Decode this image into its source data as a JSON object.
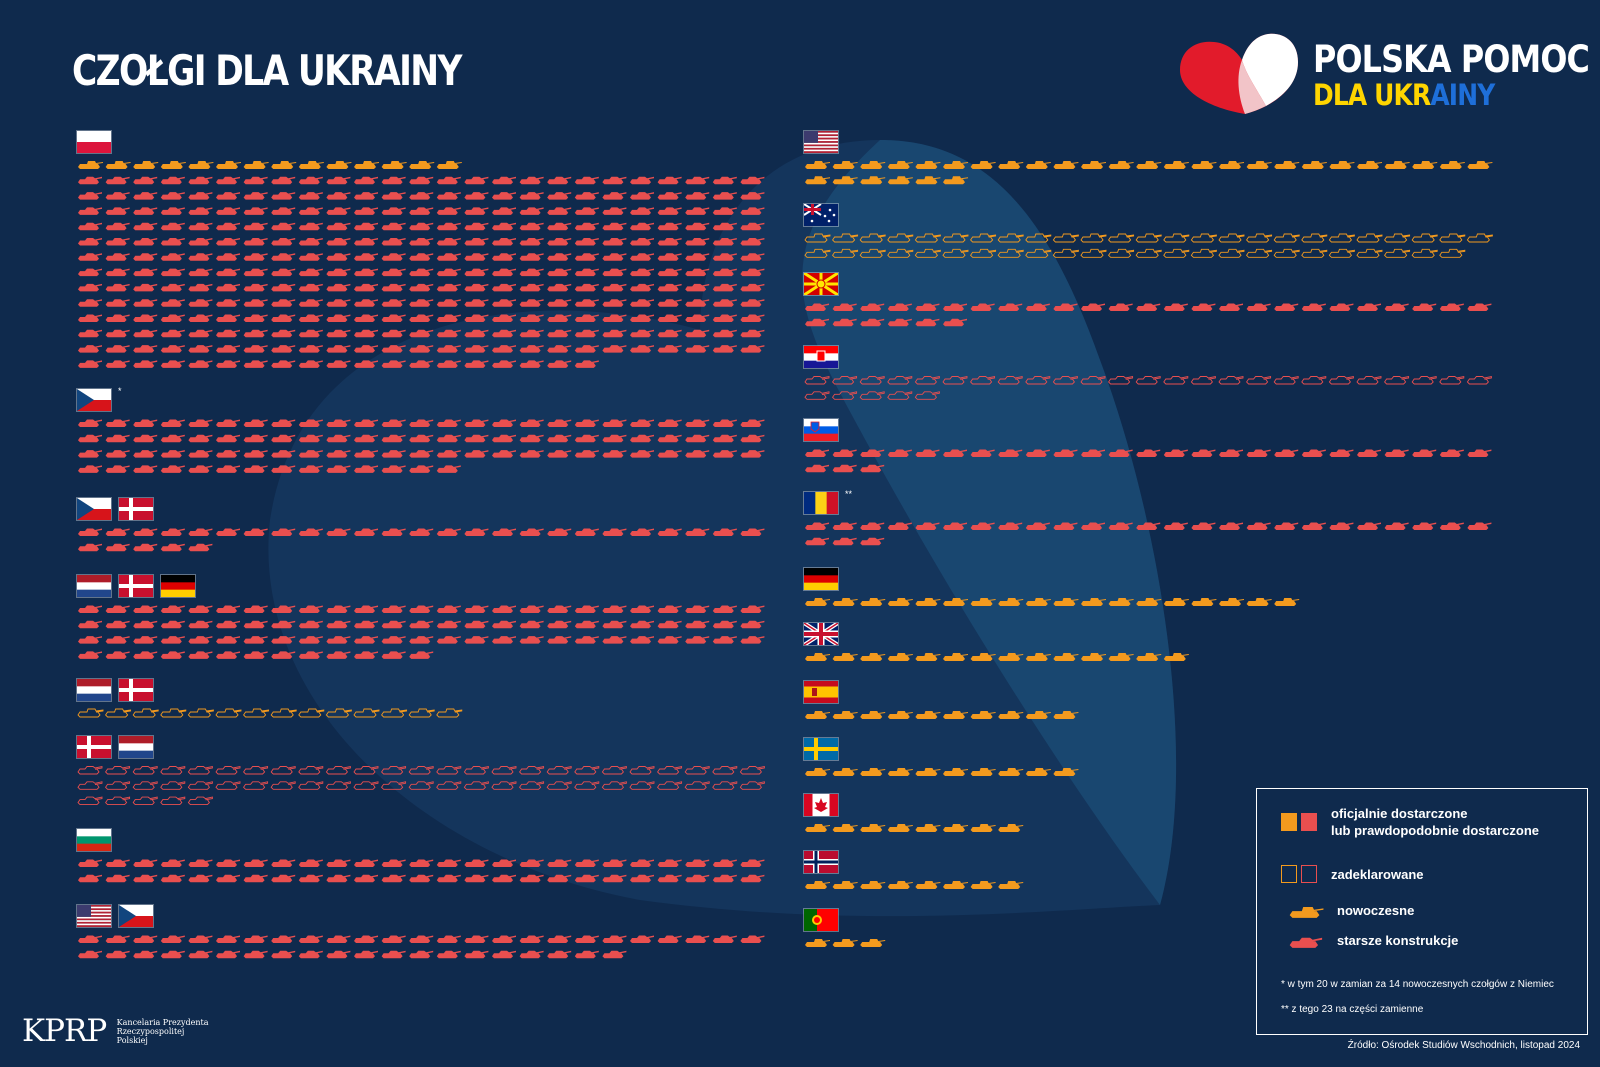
{
  "title": "CZOŁGI DLA UKRAINY",
  "brand": {
    "line1": "POLSKA POMOC",
    "line2_a": "DLA UKR",
    "line2_b": "AINY"
  },
  "colors": {
    "background": "#0f2a4d",
    "modern": "#f39a1e",
    "older": "#e94f4f",
    "heart_shape": "#153a63",
    "heart_red": "#e21b2b"
  },
  "legend": {
    "delivered": "oficjalnie dostarczone\nlub prawdopodobnie dostarczone",
    "declared": "zadeklarowane",
    "modern": "nowoczesne",
    "older": "starsze konstrukcje",
    "note1": "*   w tym 20 w zamian za 14 nowoczesnych czołgów z Niemiec",
    "note2": "** z tego 23 na części zamienne"
  },
  "source": "Źródło: Ośrodek Studiów Wschodnich, listopad 2024",
  "footer": {
    "logo": "KPRP",
    "org_line1": "Kancelaria Prezydenta",
    "org_line2": "Rzeczypospolitej",
    "org_line3": "Polskiej"
  },
  "chart_data": {
    "type": "pictogram",
    "unit": "one icon = one tank",
    "groups": [
      {
        "donors": [
          "Poland"
        ],
        "flags": [
          "pl"
        ],
        "mark": "",
        "col": "left",
        "segments": [
          {
            "kind": "modern",
            "status": "delivered",
            "count": 14
          },
          {
            "kind": "older",
            "status": "delivered",
            "count": 319
          }
        ]
      },
      {
        "donors": [
          "Czech Republic"
        ],
        "flags": [
          "cz"
        ],
        "mark": "*",
        "col": "left",
        "segments": [
          {
            "kind": "older",
            "status": "delivered",
            "count": 89
          }
        ]
      },
      {
        "donors": [
          "Czech Republic",
          "Denmark"
        ],
        "flags": [
          "cz",
          "dk"
        ],
        "mark": "",
        "col": "left",
        "segments": [
          {
            "kind": "older",
            "status": "delivered",
            "count": 30
          }
        ]
      },
      {
        "donors": [
          "Netherlands",
          "Denmark",
          "Germany"
        ],
        "flags": [
          "nl",
          "dk",
          "de"
        ],
        "mark": "",
        "col": "left",
        "segments": [
          {
            "kind": "older",
            "status": "delivered",
            "count": 88
          }
        ]
      },
      {
        "donors": [
          "Netherlands",
          "Denmark"
        ],
        "flags": [
          "nl",
          "dk"
        ],
        "mark": "",
        "col": "left",
        "segments": [
          {
            "kind": "modern",
            "status": "declared",
            "count": 14
          }
        ]
      },
      {
        "donors": [
          "Denmark",
          "Netherlands"
        ],
        "flags": [
          "dk",
          "nl"
        ],
        "mark": "",
        "col": "left",
        "segments": [
          {
            "kind": "older",
            "status": "declared",
            "count": 55
          }
        ]
      },
      {
        "donors": [
          "Bulgaria"
        ],
        "flags": [
          "bg"
        ],
        "mark": "",
        "col": "left",
        "segments": [
          {
            "kind": "older",
            "status": "delivered",
            "count": 50
          }
        ]
      },
      {
        "donors": [
          "USA",
          "Czech Republic"
        ],
        "flags": [
          "us",
          "cz"
        ],
        "mark": "",
        "col": "left",
        "segments": [
          {
            "kind": "older",
            "status": "delivered",
            "count": 45
          }
        ]
      },
      {
        "donors": [
          "USA"
        ],
        "flags": [
          "us"
        ],
        "mark": "",
        "col": "right",
        "segments": [
          {
            "kind": "modern",
            "status": "delivered",
            "count": 31
          }
        ]
      },
      {
        "donors": [
          "Australia"
        ],
        "flags": [
          "au"
        ],
        "mark": "",
        "col": "right",
        "segments": [
          {
            "kind": "modern",
            "status": "declared",
            "count": 49
          }
        ]
      },
      {
        "donors": [
          "North Macedonia"
        ],
        "flags": [
          "mk"
        ],
        "mark": "",
        "col": "right",
        "segments": [
          {
            "kind": "older",
            "status": "delivered",
            "count": 31
          }
        ]
      },
      {
        "donors": [
          "Croatia"
        ],
        "flags": [
          "hr"
        ],
        "mark": "",
        "col": "right",
        "segments": [
          {
            "kind": "older",
            "status": "declared",
            "count": 30
          }
        ]
      },
      {
        "donors": [
          "Slovenia"
        ],
        "flags": [
          "si"
        ],
        "mark": "",
        "col": "right",
        "segments": [
          {
            "kind": "older",
            "status": "delivered",
            "count": 28
          }
        ]
      },
      {
        "donors": [
          "Romania"
        ],
        "flags": [
          "ro"
        ],
        "mark": "**",
        "col": "right",
        "segments": [
          {
            "kind": "older",
            "status": "delivered",
            "count": 28
          }
        ]
      },
      {
        "donors": [
          "Germany"
        ],
        "flags": [
          "de"
        ],
        "mark": "",
        "col": "right",
        "segments": [
          {
            "kind": "modern",
            "status": "delivered",
            "count": 18
          }
        ]
      },
      {
        "donors": [
          "United Kingdom"
        ],
        "flags": [
          "gb"
        ],
        "mark": "",
        "col": "right",
        "segments": [
          {
            "kind": "modern",
            "status": "delivered",
            "count": 14
          }
        ]
      },
      {
        "donors": [
          "Spain"
        ],
        "flags": [
          "es"
        ],
        "mark": "",
        "col": "right",
        "segments": [
          {
            "kind": "modern",
            "status": "delivered",
            "count": 10
          }
        ]
      },
      {
        "donors": [
          "Sweden"
        ],
        "flags": [
          "se"
        ],
        "mark": "",
        "col": "right",
        "segments": [
          {
            "kind": "modern",
            "status": "delivered",
            "count": 10
          }
        ]
      },
      {
        "donors": [
          "Canada"
        ],
        "flags": [
          "ca"
        ],
        "mark": "",
        "col": "right",
        "segments": [
          {
            "kind": "modern",
            "status": "delivered",
            "count": 8
          }
        ]
      },
      {
        "donors": [
          "Norway"
        ],
        "flags": [
          "no"
        ],
        "mark": "",
        "col": "right",
        "segments": [
          {
            "kind": "modern",
            "status": "delivered",
            "count": 8
          }
        ]
      },
      {
        "donors": [
          "Portugal"
        ],
        "flags": [
          "pt"
        ],
        "mark": "",
        "col": "right",
        "segments": [
          {
            "kind": "modern",
            "status": "delivered",
            "count": 3
          }
        ]
      }
    ]
  }
}
